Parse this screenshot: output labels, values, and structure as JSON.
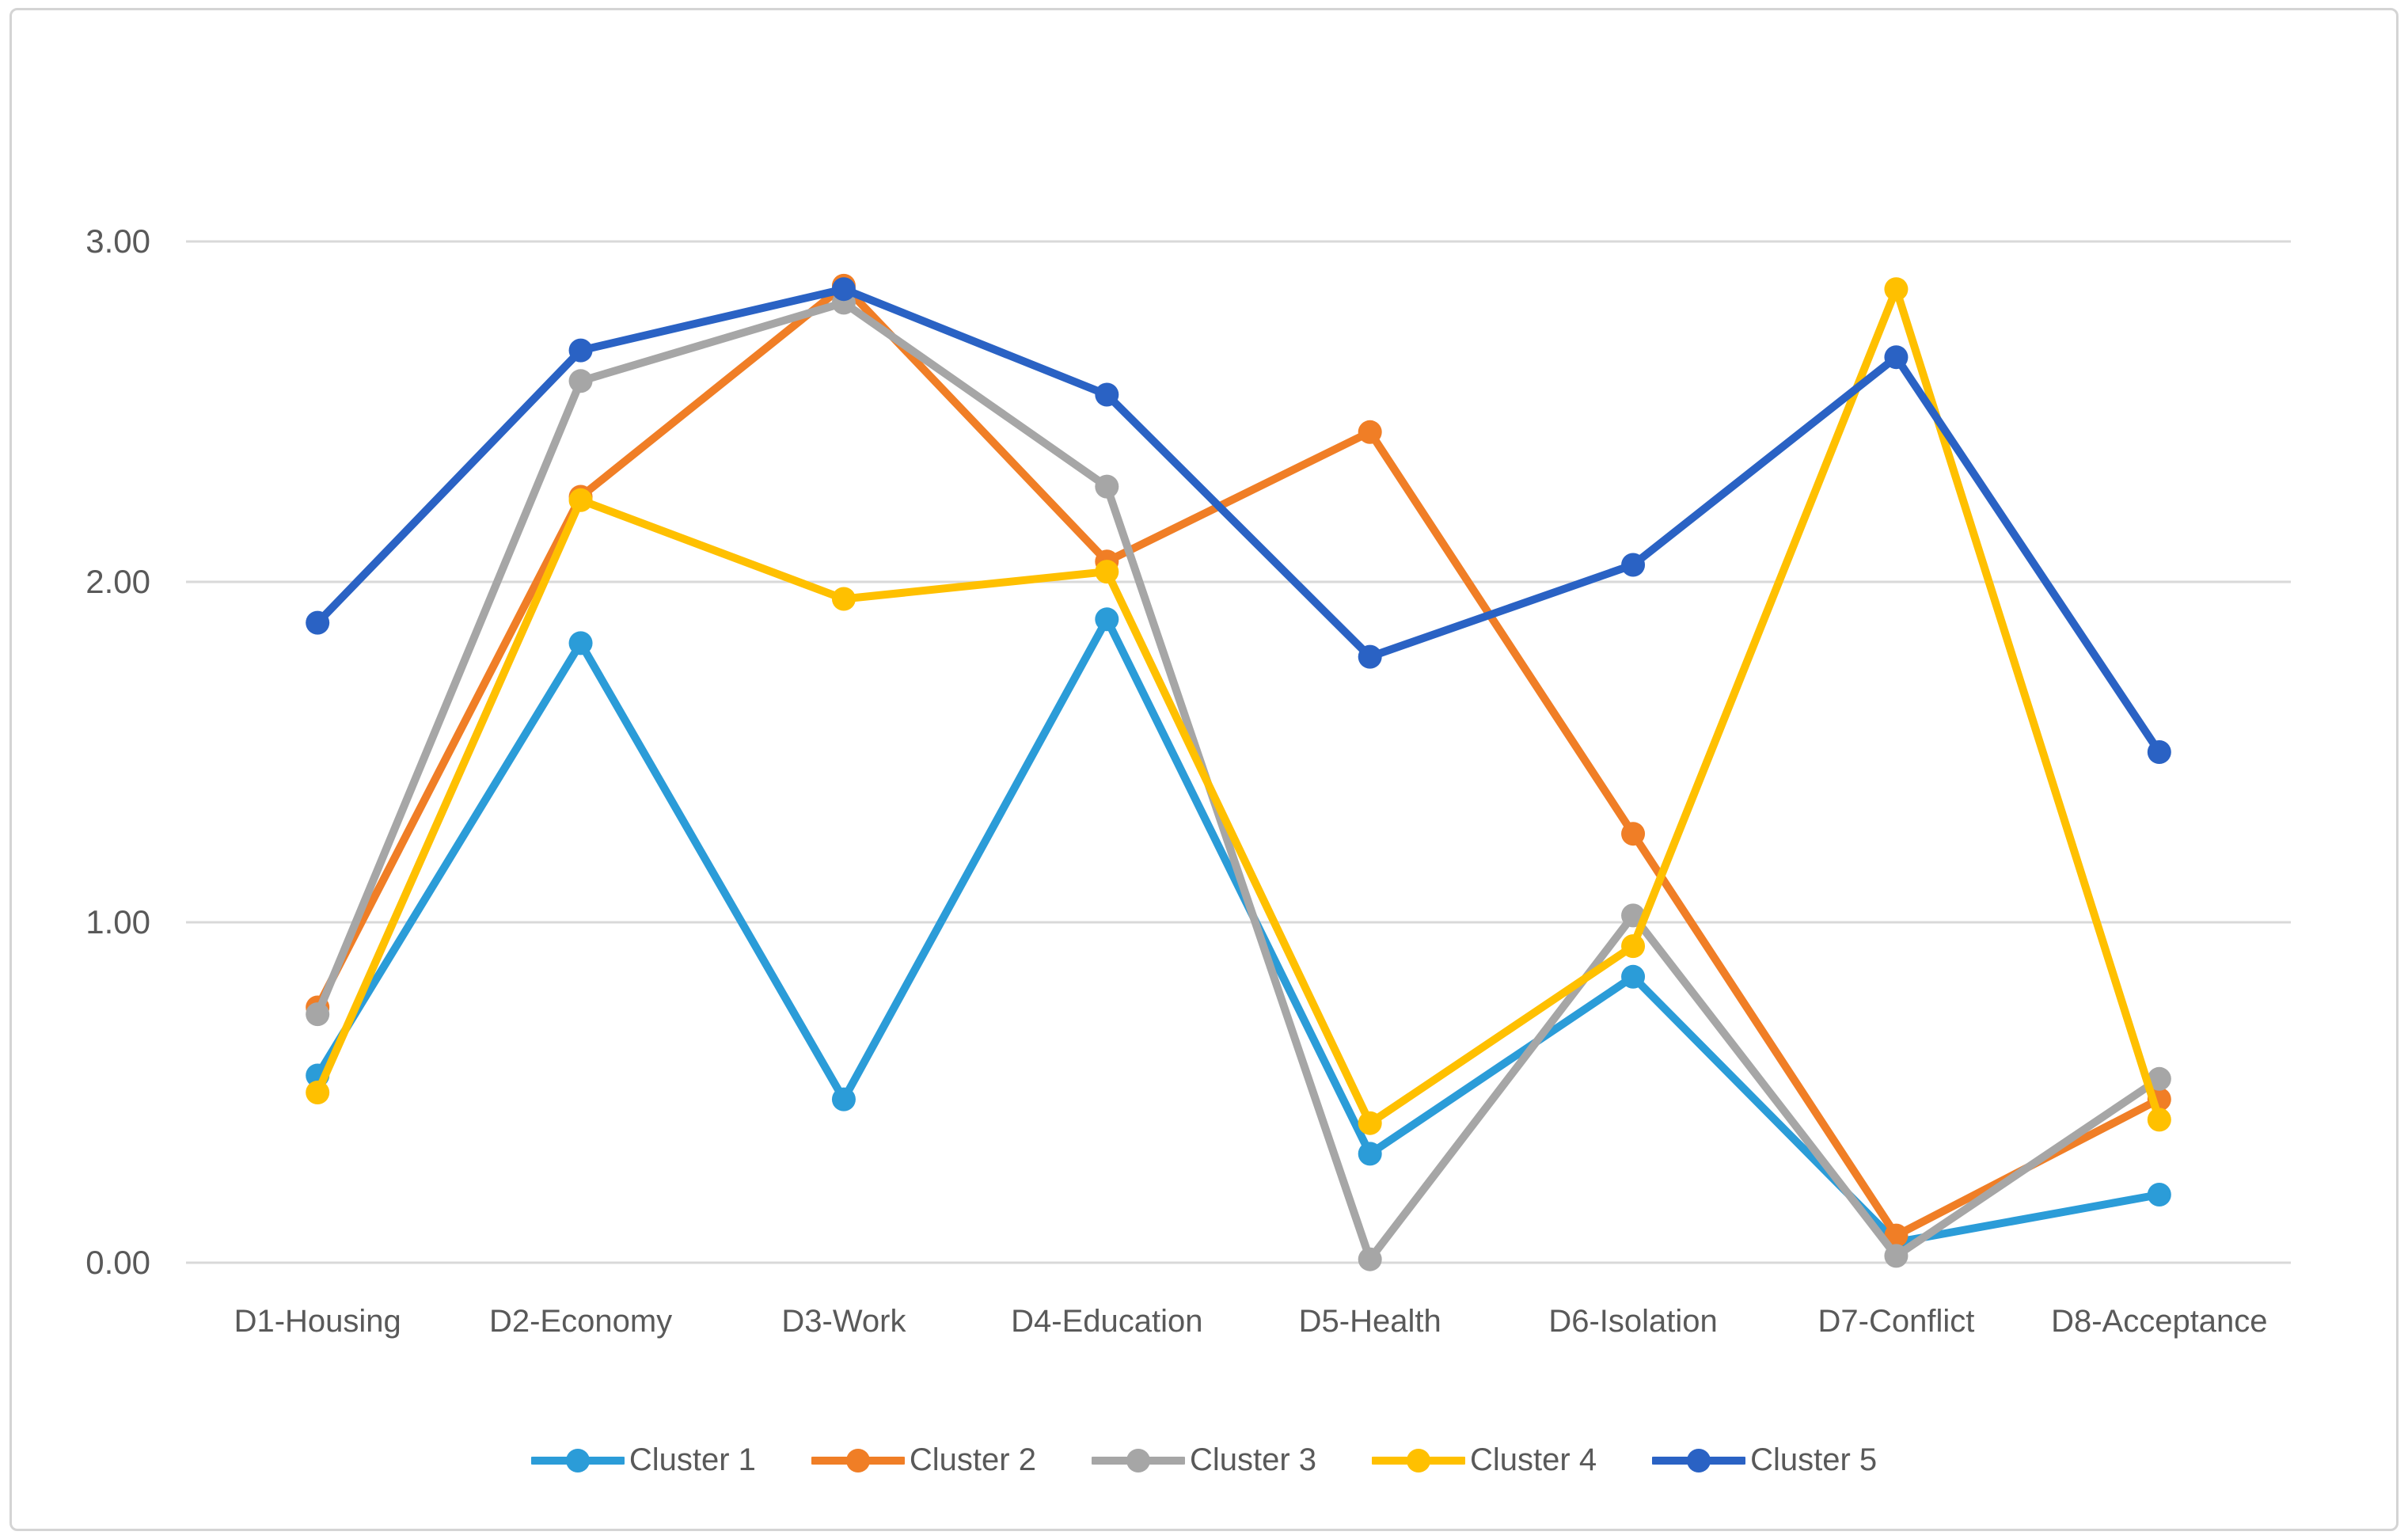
{
  "chart_data": {
    "type": "line",
    "title": "",
    "xlabel": "",
    "ylabel": "",
    "ylim": [
      0,
      3
    ],
    "grid": "horizontal",
    "legend_position": "bottom-center",
    "y_ticks": [
      {
        "value": 3,
        "label": "3.00"
      },
      {
        "value": 2,
        "label": "2.00"
      },
      {
        "value": 1,
        "label": "1.00"
      },
      {
        "value": 0,
        "label": "0.00"
      }
    ],
    "categories": [
      "D1-Housing",
      "D2-Economy",
      "D3-Work",
      "D4-Education",
      "D5-Health",
      "D6-Isolation",
      "D7-Conflict",
      "D8-Acceptance"
    ],
    "series": [
      {
        "name": "Cluster 1",
        "color": "#2B9CD8",
        "values": [
          0.55,
          1.82,
          0.48,
          1.89,
          0.32,
          0.84,
          0.06,
          0.2
        ]
      },
      {
        "name": "Cluster 2",
        "color": "#F07E26",
        "values": [
          0.75,
          2.25,
          2.87,
          2.06,
          2.44,
          1.26,
          0.08,
          0.48
        ]
      },
      {
        "name": "Cluster 3",
        "color": "#A6A6A6",
        "values": [
          0.73,
          2.59,
          2.82,
          2.28,
          0.01,
          1.02,
          0.02,
          0.54
        ]
      },
      {
        "name": "Cluster 4",
        "color": "#FFC000",
        "values": [
          0.5,
          2.24,
          1.95,
          2.03,
          0.41,
          0.93,
          2.86,
          0.42
        ]
      },
      {
        "name": "Cluster 5",
        "color": "#2A62C4",
        "values": [
          1.88,
          2.68,
          2.86,
          2.55,
          1.78,
          2.05,
          2.66,
          1.5
        ]
      }
    ],
    "colors": {
      "gridline": "#d9d9d9",
      "axis_text": "#595959",
      "frame_border": "#d4d4d4",
      "background": "#ffffff"
    }
  }
}
